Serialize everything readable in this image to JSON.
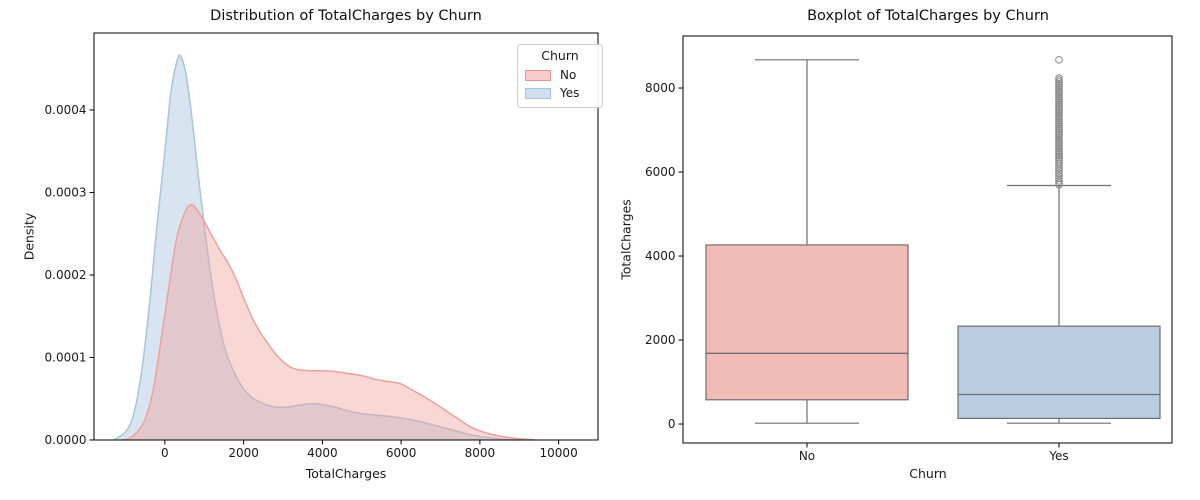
{
  "chart_data": [
    {
      "type": "area",
      "kind": "kde-density",
      "title": "Distribution of TotalCharges by Churn",
      "xlabel": "TotalCharges",
      "ylabel": "Density",
      "xlim": [
        -1800,
        11000
      ],
      "ylim": [
        0,
        0.0004933
      ],
      "x_tick_values": [
        0,
        2000,
        4000,
        6000,
        8000,
        10000
      ],
      "x_tick_labels": [
        "0",
        "2000",
        "4000",
        "6000",
        "8000",
        "10000"
      ],
      "y_tick_values": [
        0.0,
        0.0001,
        0.0002,
        0.0003,
        0.0004
      ],
      "y_tick_labels": [
        "0.0000",
        "0.0001",
        "0.0002",
        "0.0003",
        "0.0004"
      ],
      "grid": false,
      "legend": {
        "title": "Churn",
        "position": "upper right",
        "entries": [
          {
            "label": "No",
            "fill": "#f9cbca",
            "edge": "#f0928c"
          },
          {
            "label": "Yes",
            "fill": "#d0dfee",
            "edge": "#a6c2dd"
          }
        ]
      },
      "series": [
        {
          "name": "Yes",
          "color": "#a9c4de",
          "fill_opacity": 0.45,
          "points": [
            [
              -1300,
              0
            ],
            [
              -1000,
              1e-05
            ],
            [
              -800,
              3e-05
            ],
            [
              -600,
              8e-05
            ],
            [
              -400,
              0.00016
            ],
            [
              -200,
              0.00026
            ],
            [
              0,
              0.00035
            ],
            [
              150,
              0.00042
            ],
            [
              300,
              0.000458
            ],
            [
              400,
              0.000465
            ],
            [
              550,
              0.00044
            ],
            [
              700,
              0.000385
            ],
            [
              850,
              0.00032
            ],
            [
              1000,
              0.00026
            ],
            [
              1150,
              0.000205
            ],
            [
              1300,
              0.00016
            ],
            [
              1450,
              0.000125
            ],
            [
              1600,
              0.0001
            ],
            [
              1800,
              7.8e-05
            ],
            [
              2000,
              6.2e-05
            ],
            [
              2200,
              5.2e-05
            ],
            [
              2500,
              4.4e-05
            ],
            [
              2800,
              4e-05
            ],
            [
              3100,
              4e-05
            ],
            [
              3400,
              4.2e-05
            ],
            [
              3700,
              4.4e-05
            ],
            [
              4000,
              4.3e-05
            ],
            [
              4300,
              4e-05
            ],
            [
              4600,
              3.6e-05
            ],
            [
              5000,
              3.2e-05
            ],
            [
              5400,
              3e-05
            ],
            [
              5800,
              2.8e-05
            ],
            [
              6200,
              2.5e-05
            ],
            [
              6600,
              2.1e-05
            ],
            [
              7000,
              1.6e-05
            ],
            [
              7400,
              1.1e-05
            ],
            [
              7800,
              6e-06
            ],
            [
              8200,
              3e-06
            ],
            [
              8600,
              1e-06
            ],
            [
              9000,
              0
            ]
          ]
        },
        {
          "name": "No",
          "color": "#f0a09a",
          "fill_opacity": 0.42,
          "points": [
            [
              -1100,
              0
            ],
            [
              -900,
              2e-06
            ],
            [
              -700,
              1e-05
            ],
            [
              -500,
              2.5e-05
            ],
            [
              -300,
              6e-05
            ],
            [
              -100,
              0.00012
            ],
            [
              100,
              0.000185
            ],
            [
              300,
              0.000245
            ],
            [
              500,
              0.000275
            ],
            [
              650,
              0.000285
            ],
            [
              800,
              0.00028
            ],
            [
              1000,
              0.000265
            ],
            [
              1200,
              0.000247
            ],
            [
              1400,
              0.00023
            ],
            [
              1600,
              0.000215
            ],
            [
              1800,
              0.000196
            ],
            [
              2000,
              0.000172
            ],
            [
              2200,
              0.00015
            ],
            [
              2400,
              0.000132
            ],
            [
              2600,
              0.000118
            ],
            [
              2800,
              0.000105
            ],
            [
              3000,
              9.5e-05
            ],
            [
              3200,
              8.8e-05
            ],
            [
              3400,
              8.5e-05
            ],
            [
              3700,
              8.4e-05
            ],
            [
              4000,
              8.4e-05
            ],
            [
              4300,
              8.3e-05
            ],
            [
              4600,
              8.1e-05
            ],
            [
              5000,
              7.8e-05
            ],
            [
              5400,
              7.3e-05
            ],
            [
              5800,
              7e-05
            ],
            [
              6000,
              6.8e-05
            ],
            [
              6300,
              6e-05
            ],
            [
              6600,
              5.2e-05
            ],
            [
              7000,
              4e-05
            ],
            [
              7400,
              2.7e-05
            ],
            [
              7800,
              1.5e-05
            ],
            [
              8200,
              8e-06
            ],
            [
              8600,
              4e-06
            ],
            [
              9000,
              1.5e-06
            ],
            [
              9400,
              0
            ]
          ]
        }
      ]
    },
    {
      "type": "boxplot",
      "title": "Boxplot of TotalCharges by Churn",
      "xlabel": "Churn",
      "ylabel": "TotalCharges",
      "ylim": [
        -452,
        9239
      ],
      "y_tick_values": [
        0,
        2000,
        4000,
        6000,
        8000
      ],
      "y_tick_labels": [
        "0",
        "2000",
        "4000",
        "6000",
        "8000"
      ],
      "categories": [
        "No",
        "Yes"
      ],
      "grid": false,
      "line_color": "#6f6f6f",
      "flier_color": "#8a8a8a",
      "boxes": [
        {
          "category": "No",
          "fill": "#f2bcb6",
          "whisker_low": 20,
          "q1": 577,
          "median": 1683,
          "q3": 4264,
          "whisker_high": 8672,
          "outliers": []
        },
        {
          "category": "Yes",
          "fill": "#b9cde0",
          "whisker_low": 20,
          "q1": 134,
          "median": 703,
          "q3": 2331,
          "whisker_high": 5680,
          "outliers": [
            8672,
            8235,
            8190,
            8145,
            8100,
            8055,
            8010,
            7966,
            7922,
            7878,
            7834,
            7790,
            7746,
            7702,
            7658,
            7614,
            7570,
            7526,
            7482,
            7438,
            7394,
            7350,
            7306,
            7262,
            7218,
            7174,
            7130,
            7086,
            7042,
            6998,
            6954,
            6910,
            6866,
            6822,
            6778,
            6734,
            6690,
            6646,
            6602,
            6558,
            6514,
            6470,
            6426,
            6382,
            6338,
            6294,
            6250,
            6200,
            6145,
            6090,
            6030,
            5970,
            5910,
            5850,
            5790,
            5735,
            5700
          ]
        }
      ]
    }
  ]
}
